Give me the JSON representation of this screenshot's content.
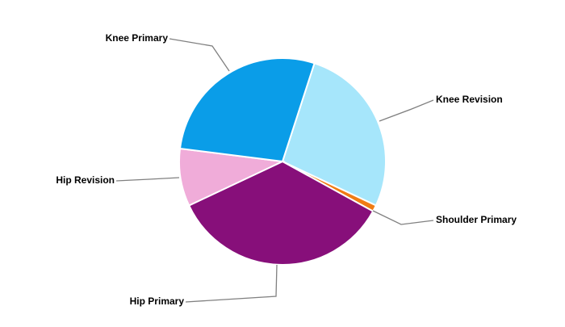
{
  "chart_data": {
    "type": "pie",
    "categories": [
      "Knee Revision",
      "Shoulder Primary",
      "Hip Primary",
      "Hip Revision",
      "Knee Primary"
    ],
    "values": [
      27,
      1,
      35,
      9,
      28
    ],
    "colors": [
      "#a6e6fb",
      "#f07c14",
      "#870f7a",
      "#f0acd9",
      "#0a9de8"
    ]
  }
}
